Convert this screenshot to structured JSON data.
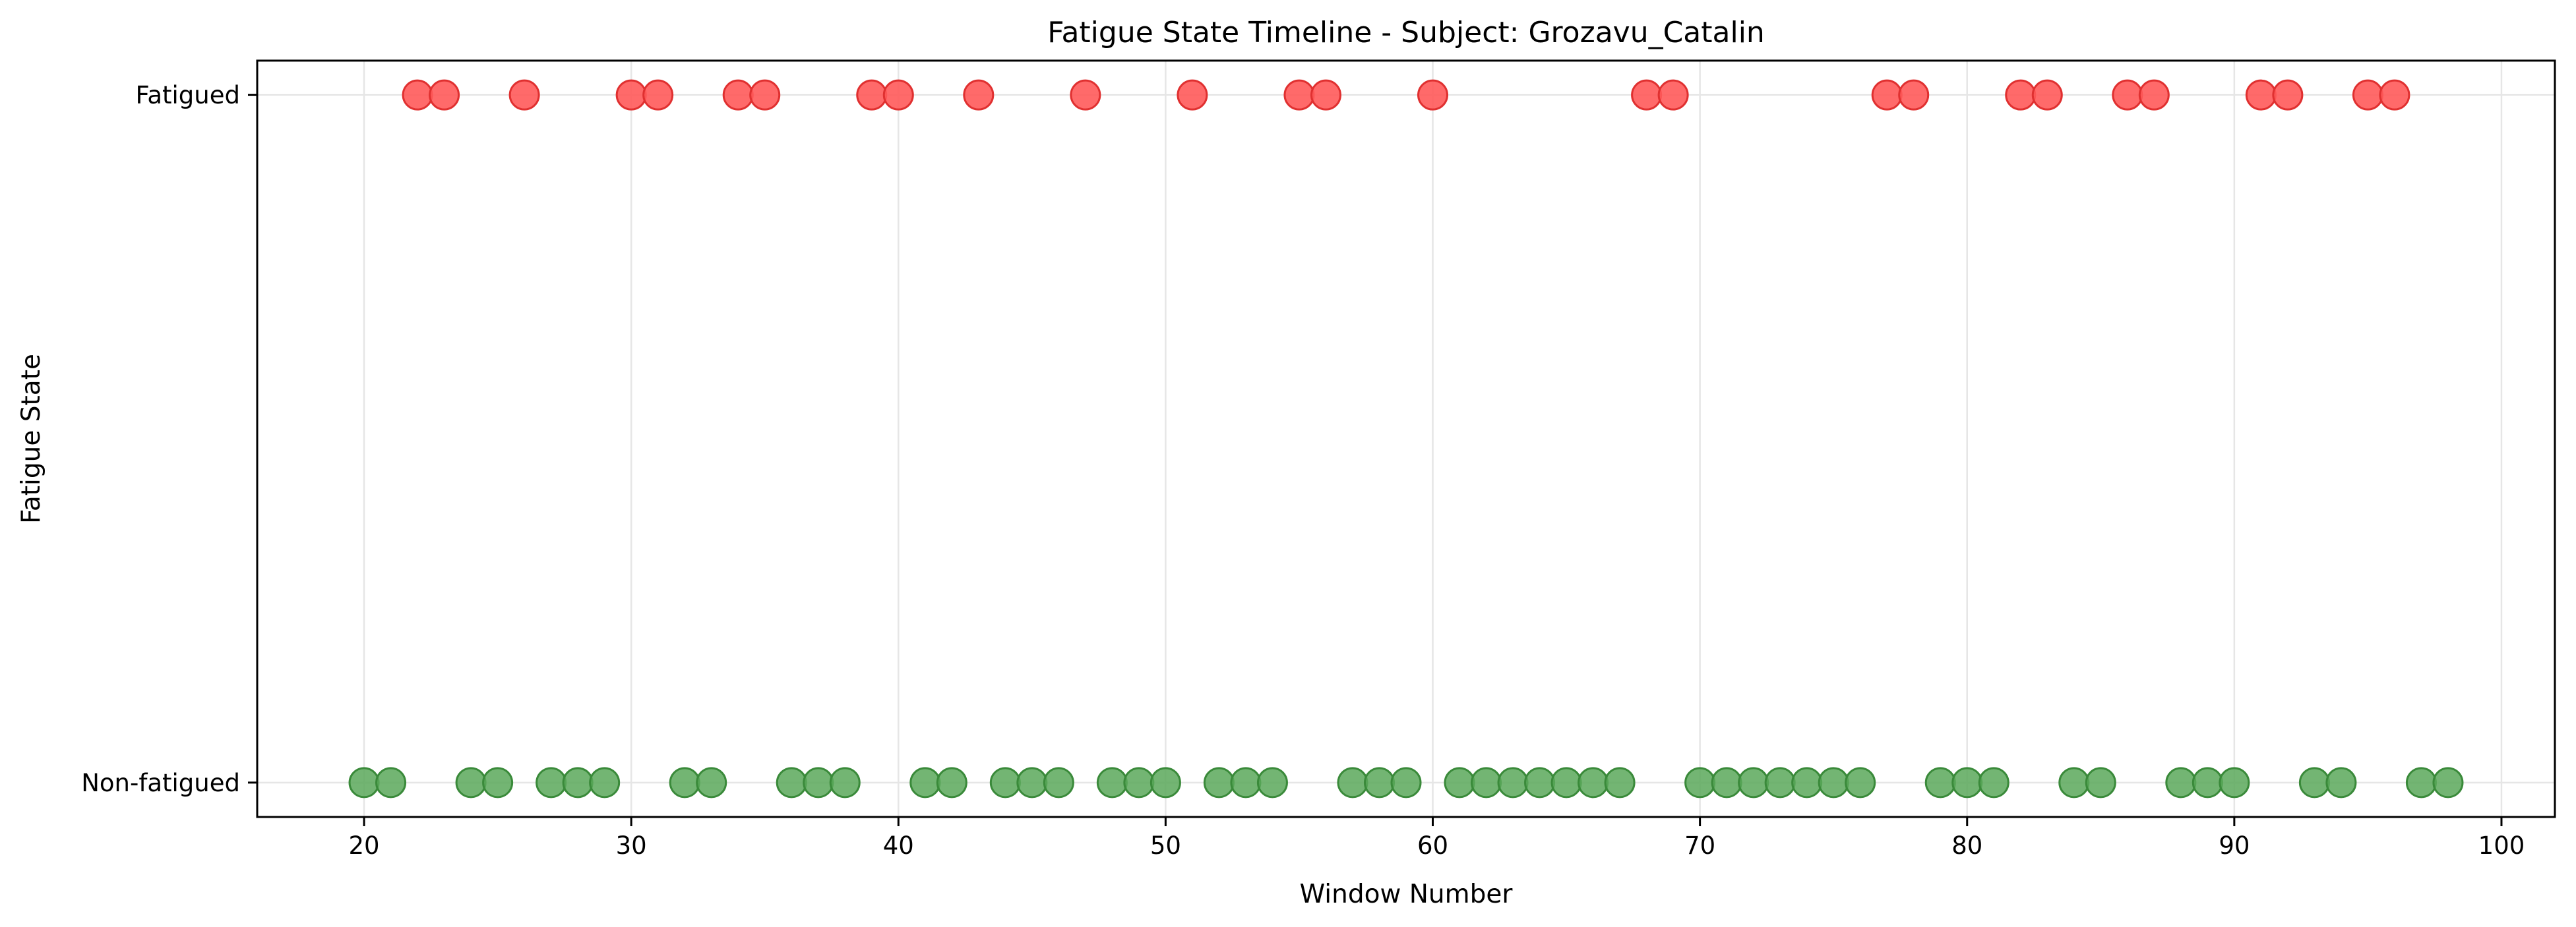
{
  "chart_data": {
    "type": "scatter",
    "title": "Fatigue State Timeline - Subject: Grozavu_Catalin",
    "xlabel": "Window Number",
    "ylabel": "Fatigue State",
    "xlim": [
      16,
      102
    ],
    "ylim": [
      -0.05,
      1.05
    ],
    "x_ticks": [
      20,
      30,
      40,
      50,
      60,
      70,
      80,
      90,
      100
    ],
    "y_ticks": [
      {
        "value": 0,
        "label": "Non-fatigued"
      },
      {
        "value": 1,
        "label": "Fatigued"
      }
    ],
    "grid": true,
    "colors": {
      "fatigued": "#ff5a5a",
      "fatigued_edge": "#e03030",
      "non_fatigued": "#5aa85a",
      "non_fatigued_edge": "#3a8a3a"
    },
    "fatigued_x": [
      22,
      23,
      26,
      30,
      31,
      34,
      35,
      39,
      40,
      43,
      47,
      51,
      55,
      56,
      60,
      68,
      69,
      77,
      78,
      82,
      83,
      86,
      87,
      91,
      92,
      95,
      96
    ],
    "non_fatigued_x": [
      20,
      21,
      24,
      25,
      27,
      28,
      29,
      32,
      33,
      36,
      37,
      38,
      41,
      42,
      44,
      45,
      46,
      48,
      49,
      50,
      52,
      53,
      54,
      57,
      58,
      59,
      61,
      62,
      63,
      64,
      65,
      66,
      67,
      70,
      71,
      72,
      73,
      74,
      75,
      76,
      79,
      80,
      81,
      84,
      85,
      88,
      89,
      90,
      93,
      94,
      97,
      98
    ]
  }
}
